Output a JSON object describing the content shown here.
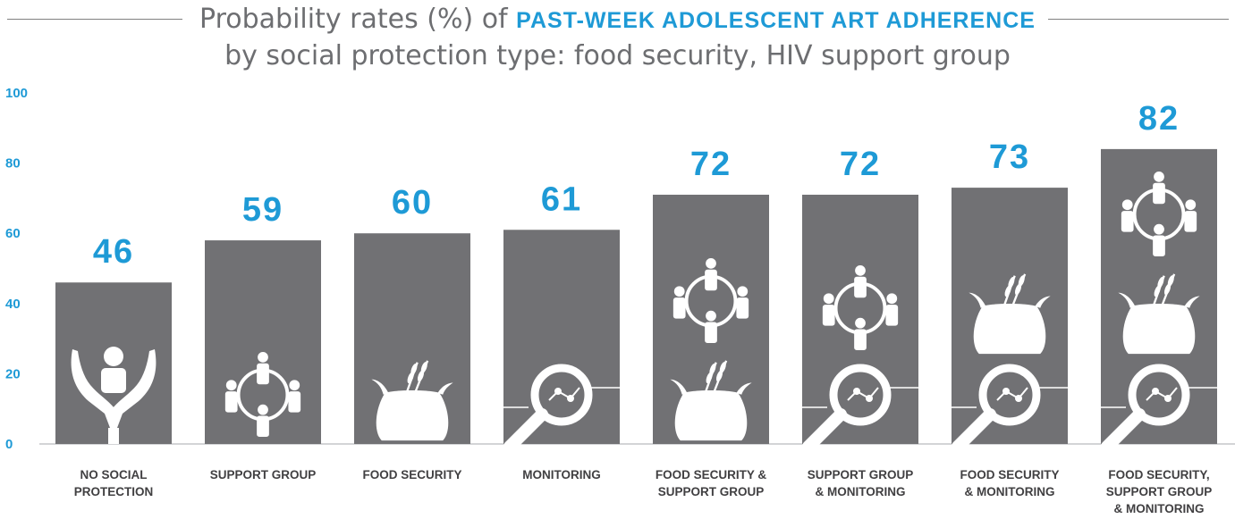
{
  "title": {
    "line1_prefix": "Probability rates (%) of",
    "line1_accent": "PAST-WEEK ADOLESCENT ART ADHERENCE",
    "line2": "by social protection type: food security, HIV support group"
  },
  "chart_data": {
    "type": "bar",
    "categories": [
      [
        "NO SOCIAL",
        "PROTECTION"
      ],
      [
        "SUPPORT GROUP"
      ],
      [
        "FOOD SECURITY"
      ],
      [
        "MONITORING"
      ],
      [
        "FOOD SECURITY &",
        "SUPPORT GROUP"
      ],
      [
        "SUPPORT GROUP",
        "& MONITORING"
      ],
      [
        "FOOD SECURITY",
        "& MONITORING"
      ],
      [
        "FOOD SECURITY,",
        "SUPPORT GROUP",
        "& MONITORING"
      ]
    ],
    "values": [
      46,
      59,
      60,
      61,
      72,
      72,
      73,
      82
    ],
    "value_labels": [
      "46",
      "59",
      "60",
      "61",
      "72",
      "72",
      "73",
      "82"
    ],
    "bar_heights": [
      46,
      58,
      60,
      61,
      71,
      71,
      73,
      84
    ],
    "icons": [
      [
        "caring-hands-icon"
      ],
      [
        "support-group-icon"
      ],
      [
        "food-bag-icon"
      ],
      [
        "monitoring-icon"
      ],
      [
        "support-group-icon",
        "food-bag-icon"
      ],
      [
        "support-group-icon",
        "monitoring-icon"
      ],
      [
        "food-bag-icon",
        "monitoring-icon"
      ],
      [
        "support-group-icon",
        "food-bag-icon",
        "monitoring-icon"
      ]
    ],
    "yticks": [
      "0",
      "20",
      "40",
      "60",
      "80",
      "100"
    ],
    "ylim": [
      0,
      100
    ],
    "grid": false,
    "colors": {
      "bar": "#717174",
      "accent": "#1e9ad6",
      "icon": "#ffffff",
      "axis": "#a7a9ac"
    }
  }
}
